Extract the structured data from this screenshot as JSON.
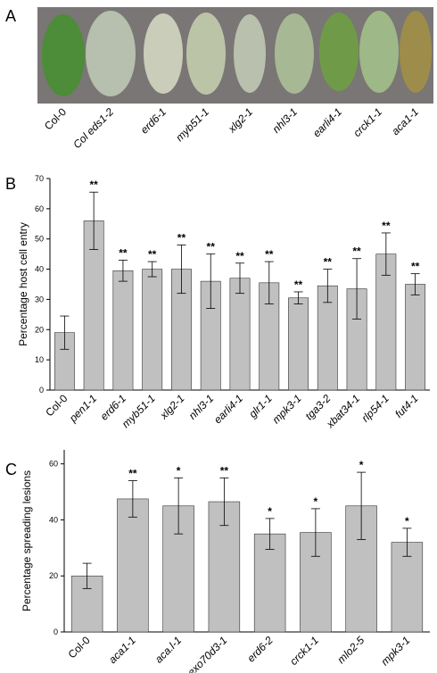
{
  "panel_a": {
    "label": "A",
    "leaves": [
      "Col-0",
      "Col eds1-2",
      "erd6-1",
      "myb51-1",
      "xlg2-1",
      "nhl3-1",
      "earli4-1",
      "crck1-1",
      "aca1-1"
    ]
  },
  "chart_data": [
    {
      "type": "bar",
      "panel_label": "B",
      "y_label": "Percentage host cell entry",
      "categories": [
        "Col-0",
        "pen1-1",
        "erd6-1",
        "myb51-1",
        "xlg2-1",
        "nhl3-1",
        "earli4-1",
        "glr1-1",
        "mpk3-1",
        "tga3-2",
        "xbat34-1",
        "rlp54-1",
        "fut4-1"
      ],
      "values": [
        19,
        56,
        39.5,
        40,
        40,
        36,
        37,
        35.5,
        30.5,
        34.5,
        33.5,
        45,
        35
      ],
      "errors": [
        5.5,
        9.5,
        3.5,
        2.5,
        8,
        9,
        5,
        7,
        2,
        5.5,
        10,
        7,
        3.5
      ],
      "annotations": [
        null,
        "**",
        "**",
        "**",
        "**",
        "**",
        "**",
        "**",
        "**",
        "**",
        "**",
        "**",
        "**"
      ],
      "color": "#c0c0c0",
      "ylim": [
        0,
        70
      ],
      "yticks": [
        0,
        10,
        20,
        30,
        40,
        50,
        60,
        70
      ]
    },
    {
      "type": "bar",
      "panel_label": "C",
      "y_label": "Percentage spreading lesions",
      "categories": [
        "Col-0",
        "aca1-1",
        "aca.l-1",
        "exo70d3-1",
        "erd6-2",
        "crck1-1",
        "mlo2-5",
        "mpk3-1"
      ],
      "values": [
        20,
        47.5,
        45,
        46.5,
        35,
        35.5,
        45,
        32
      ],
      "errors": [
        4.5,
        6.5,
        10,
        8.5,
        5.5,
        8.5,
        12,
        5
      ],
      "annotations": [
        null,
        "**",
        "*",
        "**",
        "*",
        "*",
        "*",
        "*"
      ],
      "color": "#c0c0c0",
      "ylim": [
        0,
        65
      ],
      "yticks": [
        0,
        20,
        40,
        60
      ]
    }
  ]
}
